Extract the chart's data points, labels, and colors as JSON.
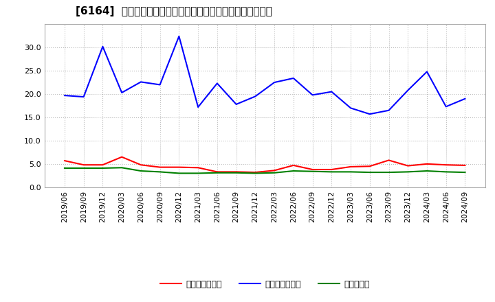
{
  "title": "[6164]  売上債権回転率、買入債務回転率、在庫回転率の推移",
  "x_labels": [
    "2019/06",
    "2019/09",
    "2019/12",
    "2020/03",
    "2020/06",
    "2020/09",
    "2020/12",
    "2021/03",
    "2021/06",
    "2021/09",
    "2021/12",
    "2022/03",
    "2022/06",
    "2022/09",
    "2022/12",
    "2023/03",
    "2023/06",
    "2023/09",
    "2023/12",
    "2024/03",
    "2024/06",
    "2024/09"
  ],
  "receivables_turnover": [
    5.7,
    4.8,
    4.8,
    6.5,
    4.8,
    4.3,
    4.3,
    4.2,
    3.3,
    3.3,
    3.2,
    3.6,
    4.7,
    3.8,
    3.8,
    4.4,
    4.5,
    5.8,
    4.6,
    5.0,
    4.8,
    4.7
  ],
  "payables_turnover": [
    19.7,
    19.4,
    30.2,
    20.3,
    22.6,
    22.0,
    32.4,
    17.2,
    22.3,
    17.8,
    19.5,
    22.5,
    23.4,
    19.8,
    20.5,
    17.0,
    15.7,
    16.5,
    20.8,
    24.8,
    17.3,
    19.0
  ],
  "inventory_turnover": [
    4.1,
    4.1,
    4.1,
    4.2,
    3.5,
    3.3,
    3.0,
    3.0,
    3.1,
    3.1,
    3.0,
    3.1,
    3.5,
    3.4,
    3.3,
    3.3,
    3.2,
    3.2,
    3.3,
    3.5,
    3.3,
    3.2
  ],
  "line_colors": {
    "receivables": "#ff0000",
    "payables": "#0000ff",
    "inventory": "#008000"
  },
  "legend_labels": {
    "receivables": "売上債権回転率",
    "payables": "買入債務回転率",
    "inventory": "在庫回転率"
  },
  "ylim": [
    0.0,
    35.0
  ],
  "yticks": [
    0.0,
    5.0,
    10.0,
    15.0,
    20.0,
    25.0,
    30.0
  ],
  "bg_color": "#ffffff",
  "grid_color": "#bbbbbb",
  "title_fontsize": 11,
  "legend_fontsize": 9,
  "tick_fontsize": 8
}
